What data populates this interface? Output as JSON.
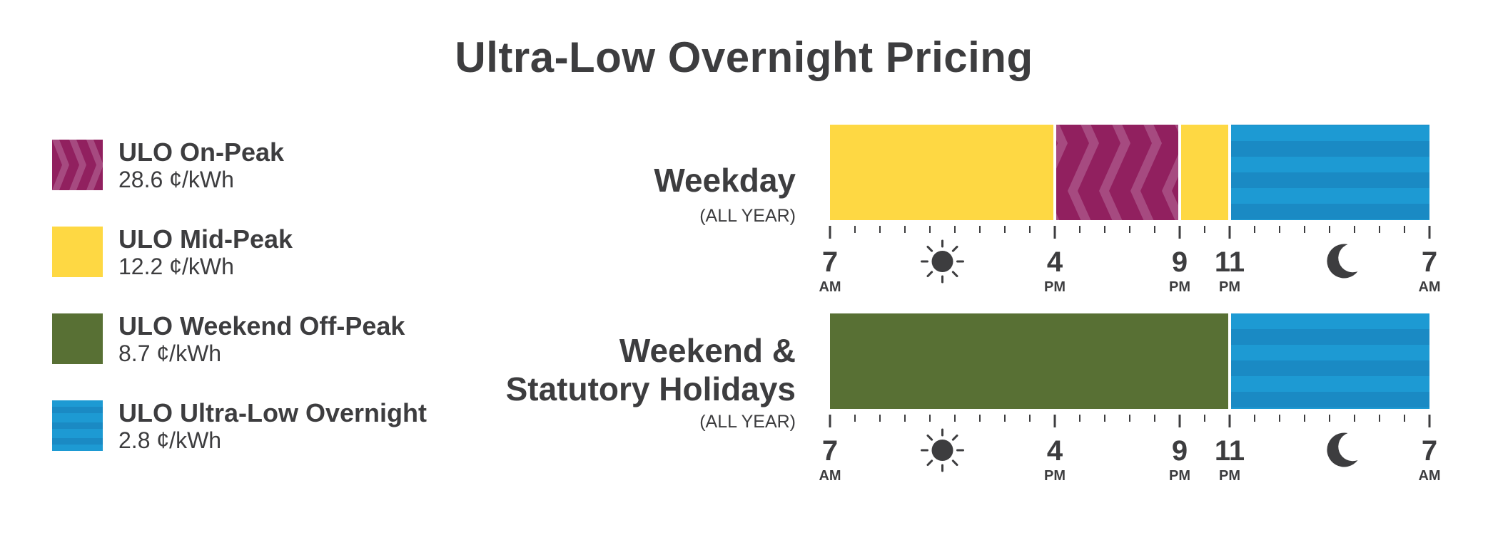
{
  "page": {
    "title": "Ultra-Low Overnight Pricing"
  },
  "legend": [
    {
      "key": "on_peak",
      "name": "ULO On-Peak",
      "price": "28.6 ¢/kWh",
      "color": "#91205f",
      "pattern": "chevrons"
    },
    {
      "key": "mid_peak",
      "name": "ULO Mid-Peak",
      "price": "12.2 ¢/kWh",
      "color": "#fed843",
      "pattern": "solid"
    },
    {
      "key": "weekend_off_peak",
      "name": "ULO Weekend Off-Peak",
      "price": "8.7 ¢/kWh",
      "color": "#587034",
      "pattern": "solid"
    },
    {
      "key": "ultra_low",
      "name": "ULO Ultra-Low Overnight",
      "price": "2.8 ¢/kWh",
      "color": "#1d9ad3",
      "pattern": "stripes"
    }
  ],
  "chart_data": {
    "type": "timeline",
    "title": "Ultra-Low Overnight Pricing",
    "x_unit": "hour of day",
    "x_range": [
      7,
      31
    ],
    "rows": [
      {
        "label": "Weekday",
        "sublabel": "(ALL YEAR)",
        "segments": [
          {
            "start": 7,
            "end": 16,
            "period": "mid_peak"
          },
          {
            "start": 16,
            "end": 21,
            "period": "on_peak"
          },
          {
            "start": 21,
            "end": 23,
            "period": "mid_peak"
          },
          {
            "start": 23,
            "end": 31,
            "period": "ultra_low"
          }
        ]
      },
      {
        "label_lines": [
          "Weekend &",
          "Statutory Holidays"
        ],
        "sublabel": "(ALL YEAR)",
        "segments": [
          {
            "start": 7,
            "end": 23,
            "period": "weekend_off_peak"
          },
          {
            "start": 23,
            "end": 31,
            "period": "ultra_low"
          }
        ]
      }
    ],
    "ticks": [
      {
        "hour": 7,
        "num": "7",
        "ampm": "AM"
      },
      {
        "hour": 16,
        "num": "4",
        "ampm": "PM"
      },
      {
        "hour": 21,
        "num": "9",
        "ampm": "PM"
      },
      {
        "hour": 23,
        "num": "11",
        "ampm": "PM"
      },
      {
        "hour": 31,
        "num": "7",
        "ampm": "AM"
      }
    ],
    "icons": [
      {
        "name": "sun-icon",
        "hour": 11.5
      },
      {
        "name": "moon-icon",
        "hour": 27.5
      }
    ]
  }
}
